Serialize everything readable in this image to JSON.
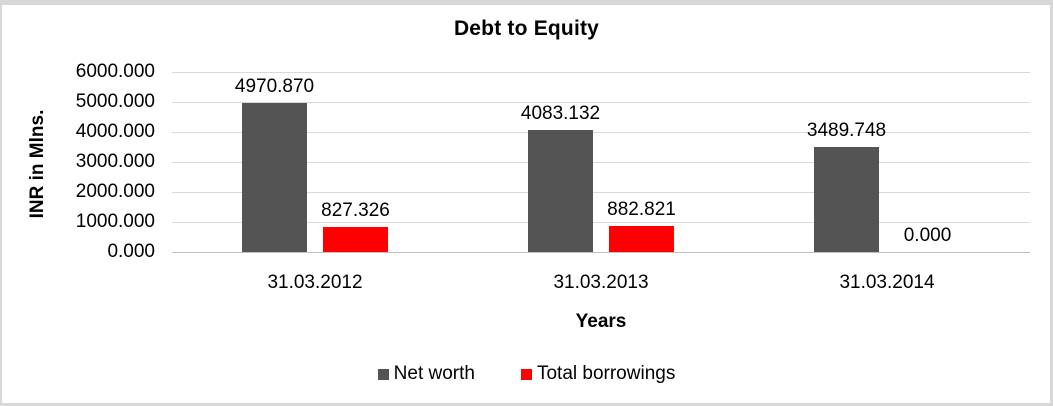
{
  "chart_data": {
    "type": "bar",
    "title": "Debt to Equity",
    "xlabel": "Years",
    "ylabel": "INR in Mlns.",
    "categories": [
      "31.03.2012",
      "31.03.2013",
      "31.03.2014"
    ],
    "series": [
      {
        "name": "Net worth",
        "color": "#545454",
        "values": [
          4970.87,
          4083.132,
          3489.748
        ],
        "labels": [
          "4970.870",
          "4083.132",
          "3489.748"
        ]
      },
      {
        "name": "Total borrowings",
        "color": "#ff0000",
        "values": [
          827.326,
          882.821,
          0.0
        ],
        "labels": [
          "827.326",
          "882.821",
          "0.000"
        ]
      }
    ],
    "ylim": [
      0,
      6000
    ],
    "ytick_interval": 1000,
    "yticks": [
      "6000.000",
      "5000.000",
      "4000.000",
      "3000.000",
      "2000.000",
      "1000.000",
      "0.000"
    ],
    "grid": true,
    "legend_position": "bottom",
    "gridline_color": "#d9d9d9",
    "axis_line_color": "#bfbfbf",
    "frame_color": "#d8d8d8"
  }
}
